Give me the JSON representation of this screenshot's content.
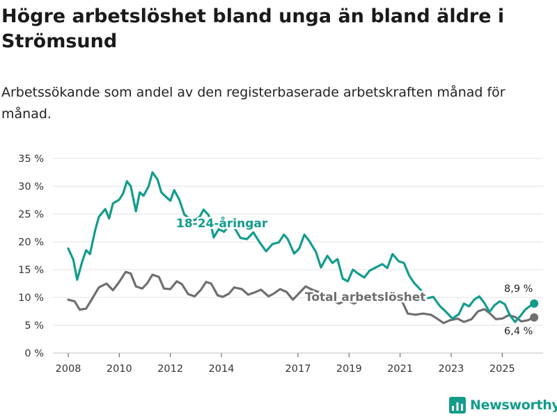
{
  "title": "Högre arbetslöshet bland unga än bland äldre i Strömsund",
  "subtitle": "Arbetssökande som andel av den registerbaserade arbetskraften månad för månad.",
  "brand": {
    "name": "Newsworthy",
    "color": "#139c8c",
    "icon": "bar-chart-logo-icon"
  },
  "chart_data": {
    "type": "line",
    "x_axis": {
      "ticks": [
        2008,
        2010,
        2012,
        2014,
        2017,
        2019,
        2021,
        2023,
        2025
      ],
      "range": [
        2007.4,
        2026.6
      ]
    },
    "y_axis": {
      "range": [
        0,
        35
      ],
      "ticks": [
        0,
        5,
        10,
        15,
        20,
        25,
        30,
        35
      ],
      "tick_labels": [
        "0 %",
        "5 %",
        "10 %",
        "15 %",
        "20 %",
        "25 %",
        "30 %",
        "35 %"
      ]
    },
    "grid": true,
    "series": [
      {
        "name": "Total arbetslöshet",
        "label": "Total arbetslöshet",
        "color": "#6f6f6f",
        "end_label": "6,4 %",
        "points": [
          [
            2008.0,
            9.6
          ],
          [
            2008.25,
            9.3
          ],
          [
            2008.45,
            7.8
          ],
          [
            2008.7,
            8.0
          ],
          [
            2008.9,
            9.5
          ],
          [
            2009.2,
            11.8
          ],
          [
            2009.5,
            12.5
          ],
          [
            2009.75,
            11.3
          ],
          [
            2010.0,
            12.8
          ],
          [
            2010.25,
            14.6
          ],
          [
            2010.45,
            14.3
          ],
          [
            2010.65,
            12.0
          ],
          [
            2010.9,
            11.6
          ],
          [
            2011.1,
            12.6
          ],
          [
            2011.3,
            14.1
          ],
          [
            2011.55,
            13.7
          ],
          [
            2011.75,
            11.6
          ],
          [
            2012.0,
            11.5
          ],
          [
            2012.25,
            12.9
          ],
          [
            2012.45,
            12.4
          ],
          [
            2012.7,
            10.6
          ],
          [
            2012.95,
            10.2
          ],
          [
            2013.2,
            11.4
          ],
          [
            2013.4,
            12.8
          ],
          [
            2013.6,
            12.5
          ],
          [
            2013.85,
            10.4
          ],
          [
            2014.05,
            10.1
          ],
          [
            2014.3,
            10.7
          ],
          [
            2014.5,
            11.8
          ],
          [
            2014.8,
            11.5
          ],
          [
            2015.05,
            10.5
          ],
          [
            2015.3,
            10.9
          ],
          [
            2015.55,
            11.4
          ],
          [
            2015.85,
            10.2
          ],
          [
            2016.05,
            10.7
          ],
          [
            2016.3,
            11.5
          ],
          [
            2016.55,
            11.0
          ],
          [
            2016.8,
            9.6
          ],
          [
            2017.05,
            10.8
          ],
          [
            2017.3,
            12.0
          ],
          [
            2017.55,
            11.4
          ],
          [
            2017.8,
            11.0
          ],
          [
            2018.1,
            10.3
          ],
          [
            2018.35,
            9.5
          ],
          [
            2018.6,
            8.9
          ],
          [
            2018.9,
            9.5
          ],
          [
            2019.2,
            8.9
          ],
          [
            2019.45,
            9.6
          ],
          [
            2019.75,
            9.4
          ],
          [
            2020.05,
            9.8
          ],
          [
            2020.35,
            10.6
          ],
          [
            2020.6,
            10.1
          ],
          [
            2020.85,
            9.6
          ],
          [
            2021.1,
            9.1
          ],
          [
            2021.3,
            7.1
          ],
          [
            2021.6,
            6.9
          ],
          [
            2021.9,
            7.1
          ],
          [
            2022.2,
            6.9
          ],
          [
            2022.45,
            6.2
          ],
          [
            2022.7,
            5.4
          ],
          [
            2022.95,
            5.9
          ],
          [
            2023.25,
            6.2
          ],
          [
            2023.5,
            5.6
          ],
          [
            2023.8,
            6.1
          ],
          [
            2024.05,
            7.5
          ],
          [
            2024.3,
            7.9
          ],
          [
            2024.5,
            7.2
          ],
          [
            2024.75,
            6.1
          ],
          [
            2025.0,
            6.2
          ],
          [
            2025.25,
            6.8
          ],
          [
            2025.5,
            6.5
          ],
          [
            2025.75,
            5.7
          ],
          [
            2026.0,
            5.9
          ],
          [
            2026.25,
            6.4
          ]
        ]
      },
      {
        "name": "18-24-åringar",
        "label": "18-24-åringar",
        "color": "#139c8c",
        "end_label": "8,9 %",
        "points": [
          [
            2008.0,
            18.8
          ],
          [
            2008.2,
            16.8
          ],
          [
            2008.35,
            13.2
          ],
          [
            2008.55,
            16.5
          ],
          [
            2008.7,
            18.5
          ],
          [
            2008.85,
            17.8
          ],
          [
            2009.05,
            22.0
          ],
          [
            2009.2,
            24.5
          ],
          [
            2009.45,
            25.9
          ],
          [
            2009.6,
            24.2
          ],
          [
            2009.75,
            26.9
          ],
          [
            2010.0,
            27.6
          ],
          [
            2010.15,
            28.7
          ],
          [
            2010.3,
            30.9
          ],
          [
            2010.45,
            30.0
          ],
          [
            2010.65,
            25.5
          ],
          [
            2010.8,
            28.9
          ],
          [
            2010.95,
            28.3
          ],
          [
            2011.15,
            30.0
          ],
          [
            2011.3,
            32.5
          ],
          [
            2011.5,
            31.2
          ],
          [
            2011.65,
            28.9
          ],
          [
            2011.85,
            28.0
          ],
          [
            2012.0,
            27.4
          ],
          [
            2012.15,
            29.3
          ],
          [
            2012.35,
            27.6
          ],
          [
            2012.55,
            24.9
          ],
          [
            2012.75,
            24.2
          ],
          [
            2012.95,
            23.9
          ],
          [
            2013.15,
            24.5
          ],
          [
            2013.3,
            25.8
          ],
          [
            2013.5,
            24.8
          ],
          [
            2013.7,
            20.8
          ],
          [
            2013.9,
            22.3
          ],
          [
            2014.1,
            21.8
          ],
          [
            2014.3,
            22.9
          ],
          [
            2014.5,
            22.6
          ],
          [
            2014.75,
            20.7
          ],
          [
            2015.0,
            20.5
          ],
          [
            2015.25,
            21.7
          ],
          [
            2015.5,
            19.9
          ],
          [
            2015.75,
            18.3
          ],
          [
            2016.0,
            19.6
          ],
          [
            2016.25,
            19.9
          ],
          [
            2016.45,
            21.3
          ],
          [
            2016.6,
            20.5
          ],
          [
            2016.85,
            17.9
          ],
          [
            2017.05,
            18.8
          ],
          [
            2017.25,
            21.3
          ],
          [
            2017.45,
            20.1
          ],
          [
            2017.7,
            18.2
          ],
          [
            2017.9,
            15.4
          ],
          [
            2018.15,
            17.5
          ],
          [
            2018.35,
            16.2
          ],
          [
            2018.55,
            16.9
          ],
          [
            2018.75,
            13.4
          ],
          [
            2018.95,
            12.9
          ],
          [
            2019.15,
            15.0
          ],
          [
            2019.35,
            14.3
          ],
          [
            2019.6,
            13.6
          ],
          [
            2019.8,
            14.8
          ],
          [
            2020.05,
            15.4
          ],
          [
            2020.3,
            16.0
          ],
          [
            2020.5,
            15.3
          ],
          [
            2020.7,
            17.8
          ],
          [
            2020.95,
            16.5
          ],
          [
            2021.15,
            16.2
          ],
          [
            2021.35,
            14.0
          ],
          [
            2021.55,
            12.6
          ],
          [
            2021.8,
            11.4
          ],
          [
            2022.0,
            9.8
          ],
          [
            2022.3,
            10.1
          ],
          [
            2022.55,
            8.5
          ],
          [
            2022.8,
            7.4
          ],
          [
            2023.05,
            6.2
          ],
          [
            2023.3,
            7.0
          ],
          [
            2023.5,
            8.9
          ],
          [
            2023.7,
            8.4
          ],
          [
            2023.9,
            9.6
          ],
          [
            2024.1,
            10.2
          ],
          [
            2024.3,
            9.0
          ],
          [
            2024.5,
            7.4
          ],
          [
            2024.7,
            8.6
          ],
          [
            2024.9,
            9.3
          ],
          [
            2025.1,
            8.8
          ],
          [
            2025.3,
            6.8
          ],
          [
            2025.5,
            5.6
          ],
          [
            2025.7,
            6.6
          ],
          [
            2025.9,
            7.8
          ],
          [
            2026.1,
            8.5
          ],
          [
            2026.25,
            8.9
          ]
        ]
      }
    ]
  }
}
